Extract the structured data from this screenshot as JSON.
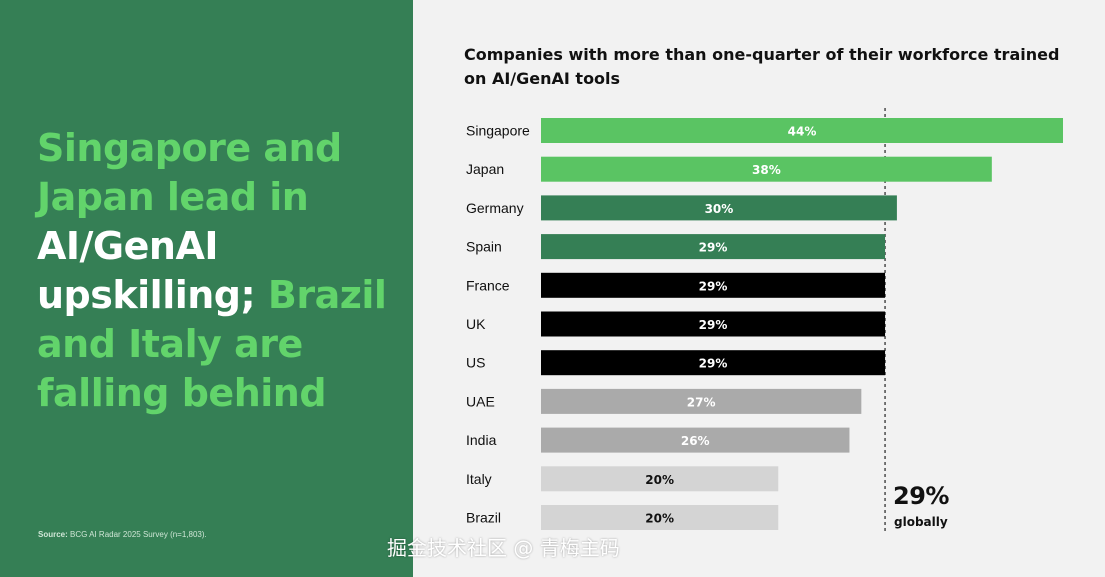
{
  "headline": {
    "part1": "Singapore and Japan lead in ",
    "part2": "AI/GenAI upskilling;",
    "part3": " Brazil and Italy are falling behind"
  },
  "source": {
    "label": "Source:",
    "text": " BCG AI Radar 2025 Survey (n=1,803)."
  },
  "watermark": "掘金技术社区 @ 青梅主码",
  "colors": {
    "left_panel": "#357f55",
    "headline_green": "#62d46b",
    "bright_green": "#5ac463",
    "dark_green": "#357f55",
    "black": "#000000",
    "gray": "#aaaaaa",
    "light_gray": "#d4d4d4"
  },
  "chart_data": {
    "type": "bar",
    "orientation": "horizontal",
    "title": "Companies with more than one-quarter of their workforce trained on AI/GenAI tools",
    "categories": [
      "Singapore",
      "Japan",
      "Germany",
      "Spain",
      "France",
      "UK",
      "US",
      "UAE",
      "India",
      "Italy",
      "Brazil"
    ],
    "values": [
      44,
      38,
      30,
      29,
      29,
      29,
      29,
      27,
      26,
      20,
      20
    ],
    "value_labels": [
      "44%",
      "38%",
      "30%",
      "29%",
      "29%",
      "29%",
      "29%",
      "27%",
      "26%",
      "20%",
      "20%"
    ],
    "bar_colors": [
      "#5ac463",
      "#5ac463",
      "#357f55",
      "#357f55",
      "#000000",
      "#000000",
      "#000000",
      "#aaaaaa",
      "#aaaaaa",
      "#d4d4d4",
      "#d4d4d4"
    ],
    "label_colors": [
      "#ffffff",
      "#ffffff",
      "#ffffff",
      "#ffffff",
      "#ffffff",
      "#ffffff",
      "#ffffff",
      "#ffffff",
      "#ffffff",
      "#111111",
      "#111111"
    ],
    "xlim": [
      0,
      44
    ],
    "reference_line": {
      "value": 29,
      "label_value": "29%",
      "label_text": "globally",
      "style": "dashed"
    },
    "grid": false,
    "legend": "none"
  }
}
